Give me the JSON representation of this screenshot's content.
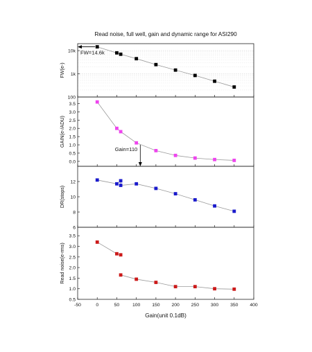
{
  "chart_data": {
    "title": "Read noise, full well, gain and dynamic range for ASI290",
    "xlabel": "Gain(unit 0.1dB)",
    "xlim": [
      -50,
      400
    ],
    "xticks": [
      -50,
      0,
      50,
      100,
      150,
      200,
      250,
      300,
      350,
      400
    ],
    "panels": [
      {
        "id": "fw",
        "type": "scatter-line",
        "ylabel": "FW(e-)",
        "yscale": "log",
        "ylim": [
          100,
          20000
        ],
        "yticks": [
          100,
          1000,
          10000
        ],
        "yticklabels": [
          "100",
          "1k",
          "10k"
        ],
        "color": "#000000",
        "grid": true,
        "x": [
          0,
          50,
          60,
          100,
          150,
          200,
          250,
          300,
          350
        ],
        "values": [
          14600,
          8000,
          7000,
          4500,
          2500,
          1450,
          850,
          480,
          270
        ],
        "annotation": {
          "text": "FW=14.6k",
          "x": 0,
          "y": 14600,
          "arrow": "left"
        }
      },
      {
        "id": "gain",
        "type": "scatter-line",
        "ylabel": "GAIN(e-/ADU)",
        "yscale": "linear",
        "ylim": [
          -0.3,
          3.9
        ],
        "yticks": [
          0.0,
          0.5,
          1.0,
          1.5,
          2.0,
          2.5,
          3.0,
          3.5
        ],
        "yticklabels": [
          "0.0",
          "0.5",
          "1.0",
          "1.5",
          "2.0",
          "2.5",
          "3.0",
          "3.5"
        ],
        "color": "#ee44ee",
        "grid": false,
        "x": [
          0,
          50,
          60,
          100,
          150,
          200,
          250,
          300,
          350
        ],
        "values": [
          3.6,
          2.0,
          1.8,
          1.12,
          0.65,
          0.36,
          0.2,
          0.11,
          0.06
        ],
        "annotation": {
          "text": "Gain=110",
          "x": 110,
          "y": 1.0,
          "arrow": "down"
        }
      },
      {
        "id": "dr",
        "type": "scatter-line",
        "ylabel": "DR(stops)",
        "yscale": "linear",
        "ylim": [
          6,
          14
        ],
        "yticks": [
          6,
          8,
          10,
          12
        ],
        "yticklabels": [
          "6",
          "8",
          "10",
          "12"
        ],
        "color": "#1a1acc",
        "grid": false,
        "x": [
          0,
          50,
          60,
          60,
          100,
          150,
          200,
          250,
          300,
          350
        ],
        "values": [
          12.2,
          11.7,
          12.1,
          11.5,
          11.7,
          11.1,
          10.4,
          9.6,
          8.8,
          8.1
        ]
      },
      {
        "id": "rn",
        "type": "scatter-line",
        "ylabel": "Read noise(e-rms)",
        "yscale": "linear",
        "ylim": [
          0.5,
          3.9
        ],
        "yticks": [
          0.5,
          1.0,
          1.5,
          2.0,
          2.5,
          3.0,
          3.5
        ],
        "yticklabels": [
          "0.5",
          "1.0",
          "1.5",
          "2.0",
          "2.5",
          "3.0",
          "3.5"
        ],
        "color": "#cc1a1a",
        "grid": false,
        "segments": [
          {
            "x": [
              0,
              50,
              60
            ],
            "values": [
              3.2,
              2.65,
              2.6
            ]
          },
          {
            "x": [
              60,
              100,
              150,
              200,
              250,
              300,
              350
            ],
            "values": [
              1.65,
              1.45,
              1.3,
              1.1,
              1.1,
              1.0,
              0.98
            ]
          }
        ]
      }
    ]
  }
}
